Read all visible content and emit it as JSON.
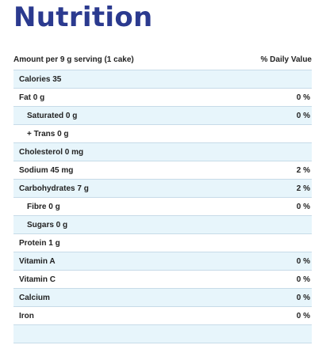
{
  "title": "Nutrition",
  "header": {
    "serving": "Amount per 9 g serving (1 cake)",
    "daily_value": "% Daily Value"
  },
  "rows": [
    {
      "label": "Calories 35",
      "value": "",
      "sub": false,
      "shaded": true
    },
    {
      "label": "Fat 0 g",
      "value": "0 %",
      "sub": false,
      "shaded": false
    },
    {
      "label": "Saturated 0 g",
      "value": "0 %",
      "sub": true,
      "shaded": true
    },
    {
      "label": "+ Trans 0 g",
      "value": "",
      "sub": true,
      "shaded": false
    },
    {
      "label": "Cholesterol 0 mg",
      "value": "",
      "sub": false,
      "shaded": true
    },
    {
      "label": "Sodium 45 mg",
      "value": "2 %",
      "sub": false,
      "shaded": false
    },
    {
      "label": "Carbohydrates 7 g",
      "value": "2 %",
      "sub": false,
      "shaded": true
    },
    {
      "label": "Fibre 0 g",
      "value": "0 %",
      "sub": true,
      "shaded": false
    },
    {
      "label": "Sugars 0 g",
      "value": "",
      "sub": true,
      "shaded": true
    },
    {
      "label": "Protein 1 g",
      "value": "",
      "sub": false,
      "shaded": false
    },
    {
      "label": "Vitamin A",
      "value": "0 %",
      "sub": false,
      "shaded": true
    },
    {
      "label": "Vitamin C",
      "value": "0 %",
      "sub": false,
      "shaded": false
    },
    {
      "label": "Calcium",
      "value": "0 %",
      "sub": false,
      "shaded": true
    },
    {
      "label": "Iron",
      "value": "0 %",
      "sub": false,
      "shaded": false
    },
    {
      "label": "",
      "value": "",
      "sub": false,
      "shaded": true
    }
  ]
}
